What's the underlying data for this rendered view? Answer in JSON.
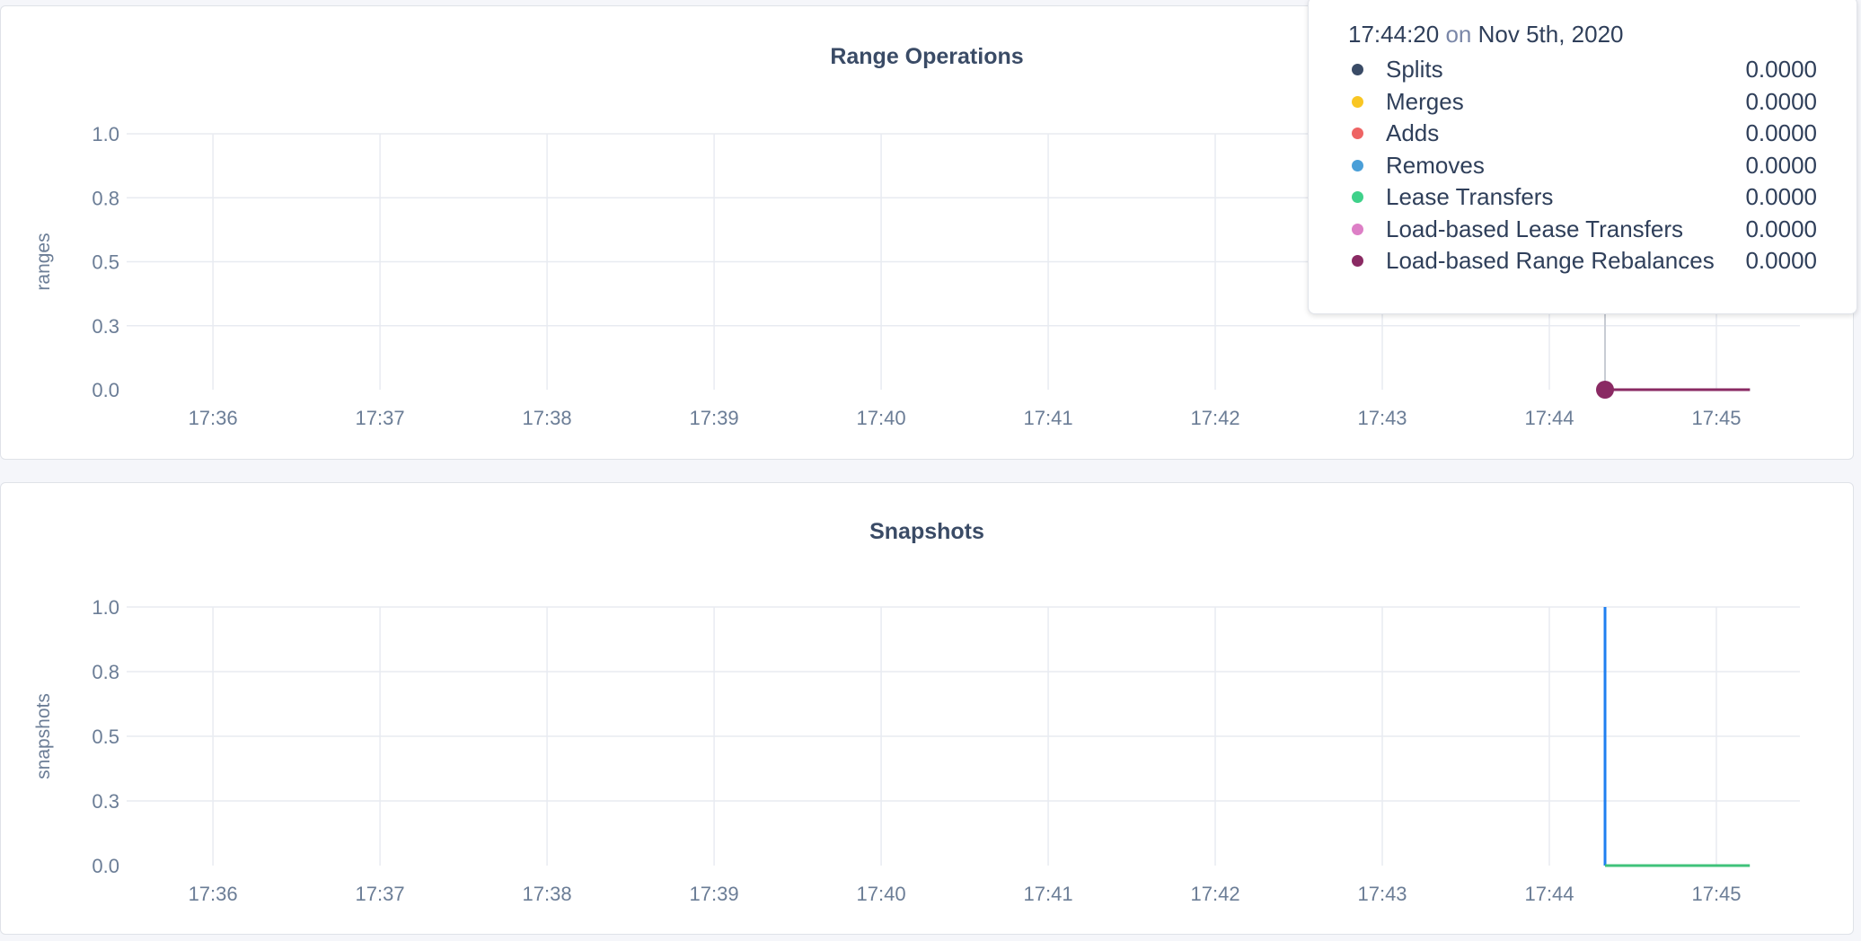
{
  "chart_data": [
    {
      "type": "line",
      "title": "Range Operations",
      "ylabel": "ranges",
      "xlabel": "",
      "ylim": [
        0,
        1
      ],
      "yticks": [
        0,
        0.25,
        0.5,
        0.75,
        1
      ],
      "ytick_labels": [
        "0.0",
        "0.3",
        "0.5",
        "0.8",
        "1.0"
      ],
      "xticks": [
        "17:36",
        "17:37",
        "17:38",
        "17:39",
        "17:40",
        "17:41",
        "17:42",
        "17:43",
        "17:44",
        "17:45"
      ],
      "xlim": [
        "17:35:29",
        "17:45:30"
      ],
      "grid": true,
      "series": [
        {
          "name": "Splits",
          "color": "#3a4b66",
          "x": [
            "17:44:20",
            "17:45:12"
          ],
          "values": [
            0,
            0
          ]
        },
        {
          "name": "Merges",
          "color": "#f9c623",
          "x": [
            "17:44:20",
            "17:45:12"
          ],
          "values": [
            0,
            0
          ]
        },
        {
          "name": "Adds",
          "color": "#ee6464",
          "x": [
            "17:44:20",
            "17:45:12"
          ],
          "values": [
            0,
            0
          ]
        },
        {
          "name": "Removes",
          "color": "#4a9fd8",
          "x": [
            "17:44:20",
            "17:45:12"
          ],
          "values": [
            0,
            0
          ]
        },
        {
          "name": "Lease Transfers",
          "color": "#3fd18a",
          "x": [
            "17:44:20",
            "17:45:12"
          ],
          "values": [
            0,
            0
          ]
        },
        {
          "name": "Load-based Lease Transfers",
          "color": "#dd7fc6",
          "x": [
            "17:44:20",
            "17:45:12"
          ],
          "values": [
            0,
            0
          ]
        },
        {
          "name": "Load-based Range Rebalances",
          "color": "#8a2a63",
          "x": [
            "17:44:20",
            "17:45:12"
          ],
          "values": [
            0,
            0
          ]
        }
      ],
      "hover_time": "17:44:20"
    },
    {
      "type": "line",
      "title": "Snapshots",
      "ylabel": "snapshots",
      "xlabel": "",
      "ylim": [
        0,
        1
      ],
      "yticks": [
        0,
        0.25,
        0.5,
        0.75,
        1
      ],
      "ytick_labels": [
        "0.0",
        "0.3",
        "0.5",
        "0.8",
        "1.0"
      ],
      "xticks": [
        "17:36",
        "17:37",
        "17:38",
        "17:39",
        "17:40",
        "17:41",
        "17:42",
        "17:43",
        "17:44",
        "17:45"
      ],
      "xlim": [
        "17:35:29",
        "17:45:30"
      ],
      "grid": true,
      "series": [
        {
          "color": "#1f7ff0",
          "x": [
            "17:44:20",
            "17:44:20"
          ],
          "values": [
            1,
            0
          ]
        },
        {
          "color": "#3fc27a",
          "x": [
            "17:44:20",
            "17:45:12"
          ],
          "values": [
            0,
            0
          ]
        }
      ]
    }
  ],
  "tooltip": {
    "time": "17:44:20",
    "on": "on",
    "date": "Nov 5th, 2020",
    "rows": [
      {
        "name": "Splits",
        "value": "0.0000",
        "color": "#3a4b66"
      },
      {
        "name": "Merges",
        "value": "0.0000",
        "color": "#f9c623"
      },
      {
        "name": "Adds",
        "value": "0.0000",
        "color": "#ee6464"
      },
      {
        "name": "Removes",
        "value": "0.0000",
        "color": "#4a9fd8"
      },
      {
        "name": "Lease Transfers",
        "value": "0.0000",
        "color": "#3fd18a"
      },
      {
        "name": "Load-based Lease Transfers",
        "value": "0.0000",
        "color": "#dd7fc6"
      },
      {
        "name": "Load-based Range Rebalances",
        "value": "0.0000",
        "color": "#8a2a63"
      }
    ]
  }
}
